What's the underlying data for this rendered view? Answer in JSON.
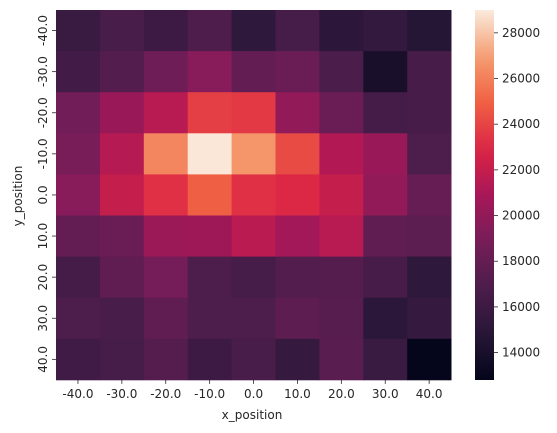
{
  "chart_data": {
    "type": "heatmap",
    "xlabel": "x_position",
    "ylabel": "y_position",
    "x": [
      "-40.0",
      "-30.0",
      "-20.0",
      "-10.0",
      "0.0",
      "10.0",
      "20.0",
      "30.0",
      "40.0"
    ],
    "y": [
      "-40.0",
      "-30.0",
      "-20.0",
      "-10.0",
      "0.0",
      "10.0",
      "20.0",
      "30.0",
      "40.0"
    ],
    "values": [
      [
        15800,
        16700,
        16000,
        17000,
        15200,
        16500,
        15100,
        15500,
        14700
      ],
      [
        16300,
        17200,
        18500,
        19600,
        18000,
        18300,
        16800,
        14000,
        16600
      ],
      [
        18600,
        20300,
        21500,
        23800,
        23600,
        20000,
        18300,
        16400,
        16600
      ],
      [
        19000,
        21400,
        26200,
        28900,
        26700,
        24200,
        21300,
        20300,
        16900
      ],
      [
        19600,
        22000,
        23300,
        24900,
        23300,
        23000,
        22000,
        20000,
        18100
      ],
      [
        18000,
        18300,
        20400,
        20500,
        21600,
        20700,
        21500,
        17800,
        17600
      ],
      [
        16400,
        17800,
        18800,
        16900,
        16500,
        17200,
        17300,
        16600,
        15200
      ],
      [
        16900,
        16700,
        17800,
        16900,
        16900,
        17700,
        17400,
        15000,
        15600
      ],
      [
        16200,
        16500,
        17300,
        16000,
        16700,
        15600,
        17500,
        15800,
        12900
      ]
    ],
    "colorbar": {
      "min": 12800,
      "max": 29000,
      "ticks": [
        "14000",
        "16000",
        "18000",
        "20000",
        "22000",
        "24000",
        "26000",
        "28000"
      ]
    },
    "colormap": "rocket"
  }
}
